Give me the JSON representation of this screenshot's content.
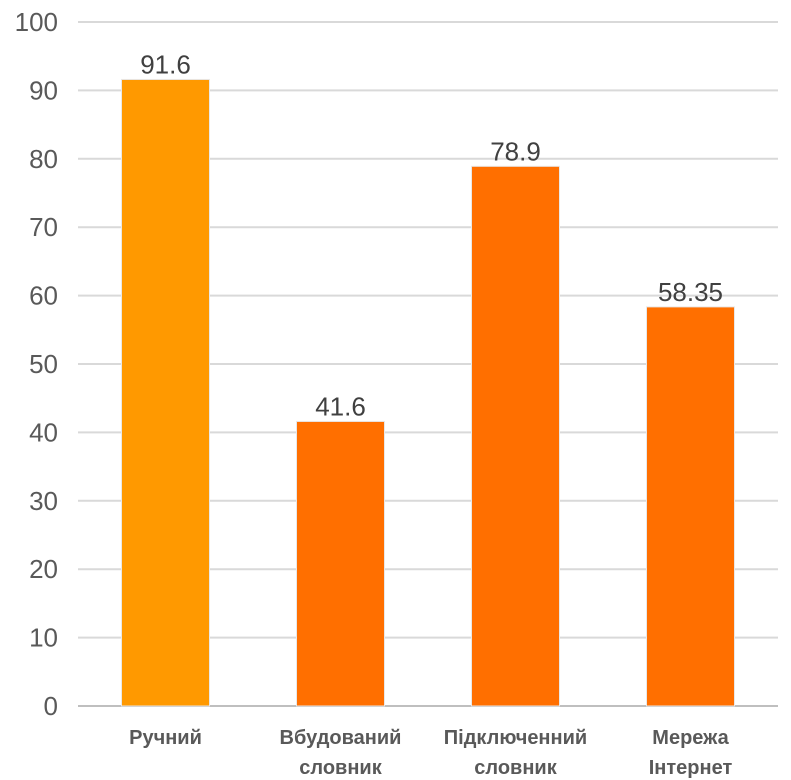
{
  "chart_data": {
    "type": "bar",
    "categories": [
      [
        "Ручний"
      ],
      [
        "Вбудований",
        "словник"
      ],
      [
        "Підключенний",
        "словник"
      ],
      [
        "Мережа",
        "Інтернет"
      ]
    ],
    "values": [
      91.6,
      41.6,
      78.9,
      58.35
    ],
    "value_labels": [
      "91.6",
      "41.6",
      "78.9",
      "58.35"
    ],
    "bar_colors": [
      "#FF9900",
      "#FF6F00",
      "#FF6F00",
      "#FF6F00"
    ],
    "ylim": [
      0,
      100
    ],
    "yticks": [
      0,
      10,
      20,
      30,
      40,
      50,
      60,
      70,
      80,
      90,
      100
    ],
    "grid": true,
    "title": "",
    "xlabel": "",
    "ylabel": ""
  }
}
